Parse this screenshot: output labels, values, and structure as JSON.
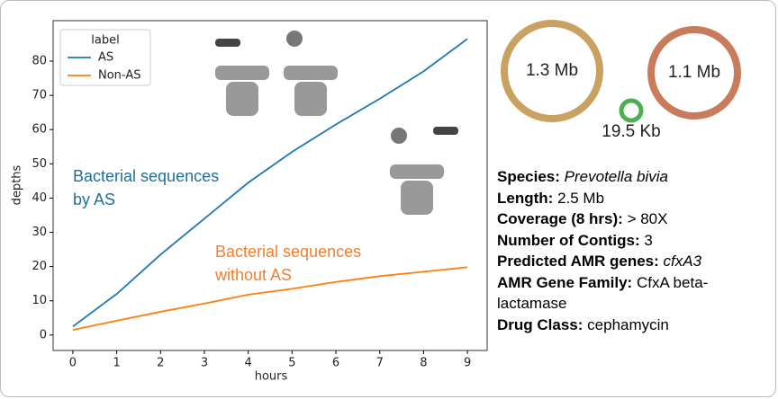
{
  "chart_data": {
    "type": "line",
    "x_label": "hours",
    "y_label": "depths",
    "x": [
      0,
      1,
      2,
      3,
      4,
      5,
      6,
      7,
      8,
      9
    ],
    "series": [
      {
        "name": "AS",
        "color": "#1f77b4",
        "values": [
          2.5,
          12,
          23.5,
          34,
          44.5,
          53.5,
          61.5,
          69,
          77,
          86.5
        ]
      },
      {
        "name": "Non-AS",
        "color": "#ff7f0e",
        "values": [
          1.5,
          4.2,
          6.8,
          9.2,
          11.8,
          13.5,
          15.5,
          17.2,
          18.5,
          19.8
        ]
      }
    ],
    "legend_title": "label",
    "legend": "upper left",
    "xlim": [
      -0.45,
      9.45
    ],
    "xticks": [
      0,
      1,
      2,
      3,
      4,
      5,
      6,
      7,
      8,
      9
    ],
    "ylim": [
      -4.5,
      91.8
    ],
    "yticks": [
      0,
      10,
      20,
      30,
      40,
      50,
      60,
      70,
      80
    ],
    "annotations": [
      {
        "lines": [
          "Bacterial sequences",
          "by AS"
        ],
        "color": "#1f6f9e"
      },
      {
        "lines": [
          "Bacterial sequences",
          "without AS"
        ],
        "color": "#f08030"
      }
    ]
  },
  "assembly": {
    "contigs": [
      "1.3 Mb",
      "1.1 Mb",
      "19.5 Kb"
    ]
  },
  "info": [
    {
      "label": "Species:",
      "value": "Prevotella bivia"
    },
    {
      "label": "Length:",
      "value": "2.5 Mb"
    },
    {
      "label": "Coverage (8 hrs):",
      "value": "> 80X"
    },
    {
      "label": "Number of Contigs:",
      "value": "3"
    },
    {
      "label": "Predicted AMR genes:",
      "value": "cfxA3"
    },
    {
      "label": "AMR Gene Family:",
      "value": "CfxA beta-lactamase"
    },
    {
      "label": "Drug Class:",
      "value": "cephamycin"
    }
  ]
}
